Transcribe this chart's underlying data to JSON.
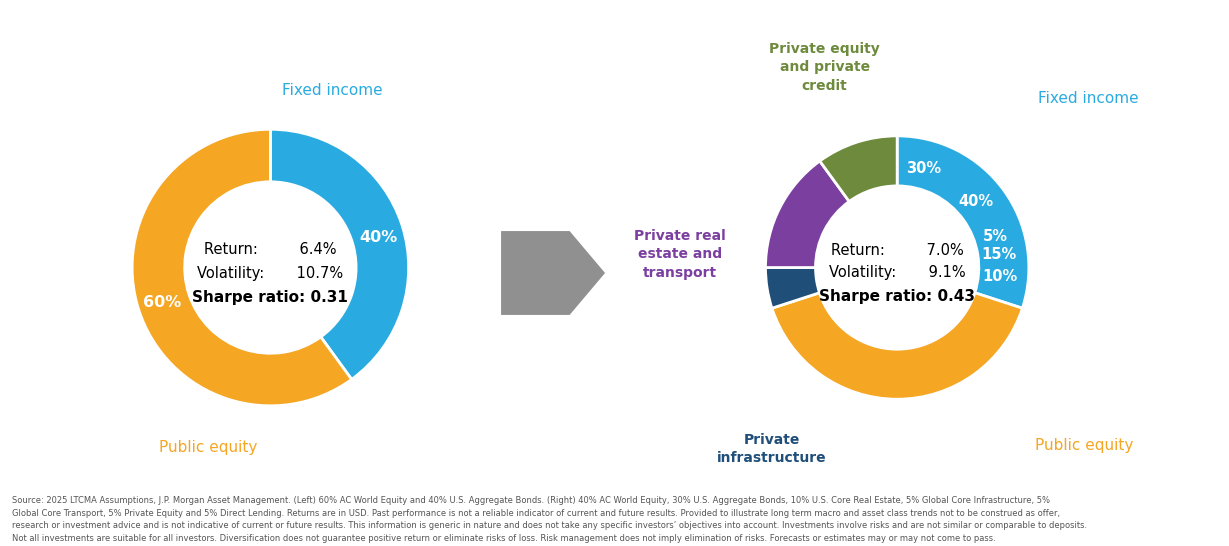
{
  "left_chart": {
    "slices": [
      40,
      60
    ],
    "colors": [
      "#29ABE2",
      "#F5A623"
    ],
    "center_text_line1": "Return:         6.4%",
    "center_text_line2": "Volatility:       10.7%",
    "center_text_line3": "Sharpe ratio: 0.31",
    "pct_fixed": "40%",
    "pct_equity": "60%",
    "label_fixed": "Fixed income",
    "label_equity": "Public equity",
    "label_color_fixed": "#29ABE2",
    "label_color_equity": "#F5A623"
  },
  "right_chart": {
    "slices": [
      30,
      40,
      5,
      15,
      10
    ],
    "colors": [
      "#29ABE2",
      "#F5A623",
      "#1F4E79",
      "#7B3FA0",
      "#6E8B3D"
    ],
    "center_text_line1": "Return:         7.0%",
    "center_text_line2": "Volatility:       9.1%",
    "center_text_line3": "Sharpe ratio: 0.43",
    "pct_labels": [
      "30%",
      "40%",
      "5%",
      "15%",
      "10%"
    ],
    "label_fixed": "Fixed income",
    "label_equity": "Public equity",
    "label_infra": "Private\ninfrastructure",
    "label_re": "Private real\nestate and\ntransport",
    "label_pe": "Private equity\nand private\ncredit",
    "label_color_fixed": "#29ABE2",
    "label_color_equity": "#F5A623",
    "label_color_infra": "#1F4E79",
    "label_color_re": "#7B3FA0",
    "label_color_pe": "#6E8B3D"
  },
  "footnote": "Source: 2025 LTCMA Assumptions, J.P. Morgan Asset Management. (Left) 60% AC World Equity and 40% U.S. Aggregate Bonds. (Right) 40% AC World Equity, 30% U.S. Aggregate Bonds, 10% U.S. Core Real Estate, 5% Global Core Infrastructure, 5%\nGlobal Core Transport, 5% Private Equity and 5% Direct Lending. Returns are in USD. Past performance is not a reliable indicator of current and future results. Provided to illustrate long term macro and asset class trends not to be construed as offer,\nresearch or investment advice and is not indicative of current or future results. This information is generic in nature and does not take any specific investors’ objectives into account. Investments involve risks and are not similar or comparable to deposits.\nNot all investments are suitable for all investors. Diversification does not guarantee positive return or eliminate risks of loss. Risk management does not imply elimination of risks. Forecasts or estimates may or may not come to pass.",
  "background_color": "#FFFFFF",
  "arrow_color": "#909090"
}
